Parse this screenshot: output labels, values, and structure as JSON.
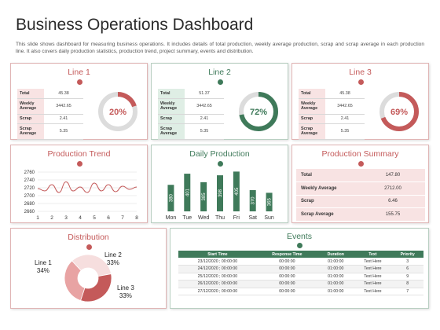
{
  "header": {
    "title": "Business Operations Dashboard",
    "description": "This slide shows dashboard for measuring business operations. It includes details of total production, weekly average production, scrap and scrap average in each production line. It also covers daily production statistics, production trend, project summary, events and distribution."
  },
  "colors": {
    "red": "#c45a5a",
    "green": "#3f7a5a",
    "light_red": "#f8e3e3",
    "light_green": "#dfeee5"
  },
  "lines": [
    {
      "title": "Line 1",
      "percent_label": "20%",
      "percent": 20,
      "theme": "red",
      "rows": [
        {
          "k": "Total",
          "v": "45.38"
        },
        {
          "k": "Weekly Average",
          "v": "3442.65"
        },
        {
          "k": "Scrap",
          "v": "2.41"
        },
        {
          "k": "Scrap Average",
          "v": "5.35"
        }
      ]
    },
    {
      "title": "Line 2",
      "percent_label": "72%",
      "percent": 72,
      "theme": "green",
      "rows": [
        {
          "k": "Total",
          "v": "51.37"
        },
        {
          "k": "Weekly Average",
          "v": "3442.65"
        },
        {
          "k": "Scrap",
          "v": "2.41"
        },
        {
          "k": "Scrap Average",
          "v": "5.35"
        }
      ]
    },
    {
      "title": "Line 3",
      "percent_label": "69%",
      "percent": 69,
      "theme": "red",
      "rows": [
        {
          "k": "Total",
          "v": "45.38"
        },
        {
          "k": "Weekly Average",
          "v": "3442.65"
        },
        {
          "k": "Scrap",
          "v": "2.41"
        },
        {
          "k": "Scrap Average",
          "v": "5.35"
        }
      ]
    }
  ],
  "production_trend": {
    "title": "Production Trend"
  },
  "daily_production": {
    "title": "Daily Production"
  },
  "production_summary": {
    "title": "Production Summary",
    "rows": [
      {
        "k": "Total",
        "v": "147.80"
      },
      {
        "k": "Weekly Average",
        "v": "2712.00"
      },
      {
        "k": "Scrap",
        "v": "6.46"
      },
      {
        "k": "Scrap Average",
        "v": "155.75"
      }
    ]
  },
  "distribution": {
    "title": "Distribution"
  },
  "events": {
    "title": "Events",
    "columns": [
      "Start Time",
      "Response Time",
      "Duration",
      "Text",
      "Priority"
    ],
    "rows": [
      [
        "23/12/2020 ; 00:00:00",
        "00:00:00",
        "01:00:00",
        "Text Here",
        "3"
      ],
      [
        "24/12/2020 ; 00:00:00",
        "00:00:00",
        "01:00:00",
        "Text Here",
        "6"
      ],
      [
        "25/12/2020 ; 00:00:00",
        "00:00:00",
        "01:00:00",
        "Text Here",
        "9"
      ],
      [
        "26/12/2020 ; 00:00:00",
        "00:00:00",
        "01:00:00",
        "Text Here",
        "8"
      ],
      [
        "27/12/2020 ; 00:00:00",
        "00:00:00",
        "01:00:00",
        "Text Here",
        "7"
      ]
    ]
  },
  "chart_data": [
    {
      "type": "line",
      "title": "Production Trend",
      "x": [
        1,
        1.5,
        2,
        2.5,
        3,
        3.5,
        4,
        4.5,
        5,
        5.5,
        6,
        6.5,
        7,
        7.5,
        8
      ],
      "xticks": [
        "1",
        "2",
        "3",
        "4",
        "5",
        "6",
        "7",
        "8"
      ],
      "yticks": [
        "2760",
        "2740",
        "2720",
        "2700",
        "2680",
        "2660"
      ],
      "ylim": [
        2660,
        2760
      ],
      "series": [
        {
          "values": [
            2718,
            2712,
            2728,
            2708,
            2735,
            2712,
            2722,
            2708,
            2732,
            2712,
            2728,
            2710,
            2724,
            2716,
            2722
          ]
        }
      ],
      "color": "#c45a5a",
      "grid": true
    },
    {
      "type": "bar",
      "title": "Daily Production",
      "categories": [
        "Mon",
        "Tue",
        "Wed",
        "Thu",
        "Fri",
        "Sat",
        "Sun"
      ],
      "values": [
        380,
        401,
        385,
        398,
        405,
        370,
        365
      ],
      "value_labels": [
        "380",
        "401",
        "385",
        "398",
        "405",
        "370",
        "365"
      ],
      "ylim": [
        330,
        410
      ],
      "color": "#3f7a5a"
    },
    {
      "type": "pie",
      "title": "Distribution",
      "labels": [
        "Line 1",
        "Line 2",
        "Line 3"
      ],
      "values": [
        34,
        33,
        33
      ],
      "value_labels": [
        "34%",
        "33%",
        "33%"
      ],
      "colors": [
        "#f6dede",
        "#c45a5a",
        "#e8a3a3"
      ],
      "donut": true
    }
  ]
}
